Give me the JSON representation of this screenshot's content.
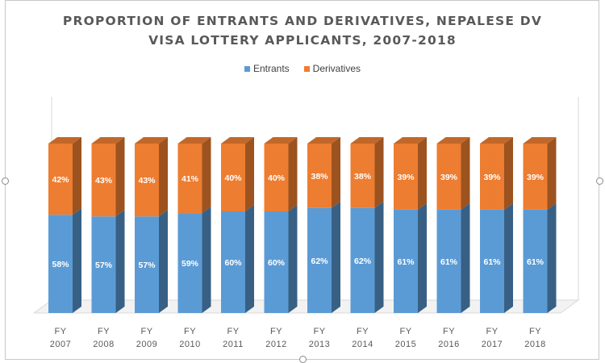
{
  "chart_data": {
    "type": "bar",
    "stacked": true,
    "style": "3d-column",
    "title_lines": [
      "PROPORTION OF ENTRANTS AND DERIVATIVES, NEPALESE DV",
      "VISA LOTTERY APPLICANTS, 2007-2018"
    ],
    "legend_position": "top",
    "grid": false,
    "ylim": [
      0,
      100
    ],
    "categories": [
      [
        "FY",
        "2007"
      ],
      [
        "FY",
        "2008"
      ],
      [
        "FY",
        "2009"
      ],
      [
        "FY",
        "2010"
      ],
      [
        "FY",
        "2011"
      ],
      [
        "FY",
        "2012"
      ],
      [
        "FY",
        "2013"
      ],
      [
        "FY",
        "2014"
      ],
      [
        "FY",
        "2015"
      ],
      [
        "FY",
        "2016"
      ],
      [
        "FY",
        "2017"
      ],
      [
        "FY",
        "2018"
      ]
    ],
    "series": [
      {
        "name": "Entrants",
        "color": "#5b9bd5",
        "values": [
          58,
          57,
          57,
          59,
          60,
          60,
          62,
          62,
          61,
          61,
          61,
          61
        ],
        "labels": [
          "58%",
          "57%",
          "57%",
          "59%",
          "60%",
          "60%",
          "62%",
          "62%",
          "61%",
          "61%",
          "61%",
          "61%"
        ]
      },
      {
        "name": "Derivatives",
        "color": "#ed7d31",
        "values": [
          42,
          43,
          43,
          41,
          40,
          40,
          38,
          38,
          39,
          39,
          39,
          39
        ],
        "labels": [
          "42%",
          "43%",
          "43%",
          "41%",
          "40%",
          "40%",
          "38%",
          "38%",
          "39%",
          "39%",
          "39%",
          "39%"
        ]
      }
    ]
  }
}
